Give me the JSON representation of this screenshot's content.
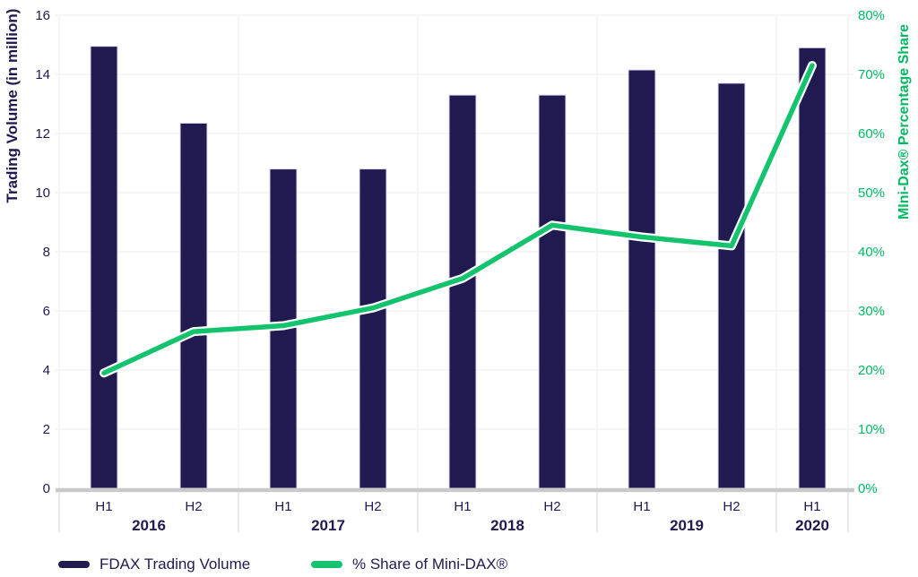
{
  "legend": {
    "items": [
      {
        "label": "FDAX Trading Volume"
      },
      {
        "label": "% Share of Mini-DAX®"
      }
    ]
  },
  "chart_data": {
    "type": "bar+line",
    "categories": [
      "H1",
      "H2",
      "H1",
      "H2",
      "H1",
      "H2",
      "H1",
      "H2",
      "H1"
    ],
    "year_groups": [
      {
        "label": "2016",
        "count": 2
      },
      {
        "label": "2017",
        "count": 2
      },
      {
        "label": "2018",
        "count": 2
      },
      {
        "label": "2019",
        "count": 2
      },
      {
        "label": "2020",
        "count": 1
      }
    ],
    "series": [
      {
        "name": "FDAX Trading Volume",
        "type": "bar",
        "axis": "left",
        "color": "#211a50",
        "values": [
          14.95,
          12.35,
          10.8,
          10.8,
          13.3,
          13.3,
          14.15,
          13.7,
          14.9
        ]
      },
      {
        "name": "% Share of Mini-DAX®",
        "type": "line",
        "axis": "right",
        "color": "#14c36d",
        "values": [
          19.5,
          26.5,
          27.5,
          30.5,
          35.5,
          44.5,
          42.5,
          41,
          71.5
        ]
      }
    ],
    "left_axis": {
      "title": "Trading Volume (in million)",
      "min": 0,
      "max": 16,
      "ticks": [
        "0",
        "2",
        "4",
        "6",
        "8",
        "10",
        "12",
        "14",
        "16"
      ]
    },
    "right_axis": {
      "title": "MIni-Dax® Percentage Share",
      "min": 0,
      "max": 80,
      "ticks": [
        "0%",
        "10%",
        "20%",
        "30%",
        "40%",
        "50%",
        "60%",
        "70%",
        "80%"
      ]
    },
    "colors": {
      "bar": "#211a50",
      "bar_edge": "#dcdaec",
      "line": "#14c36d",
      "line_casing": "#ffffff",
      "axis_text_left": "#211a50",
      "axis_text_right": "#00ba62",
      "grid": "#f2f2f2",
      "separator": "#e4e4e4",
      "axis_line": "#c9c9c9"
    },
    "grid": true,
    "legend_position": "bottom"
  }
}
